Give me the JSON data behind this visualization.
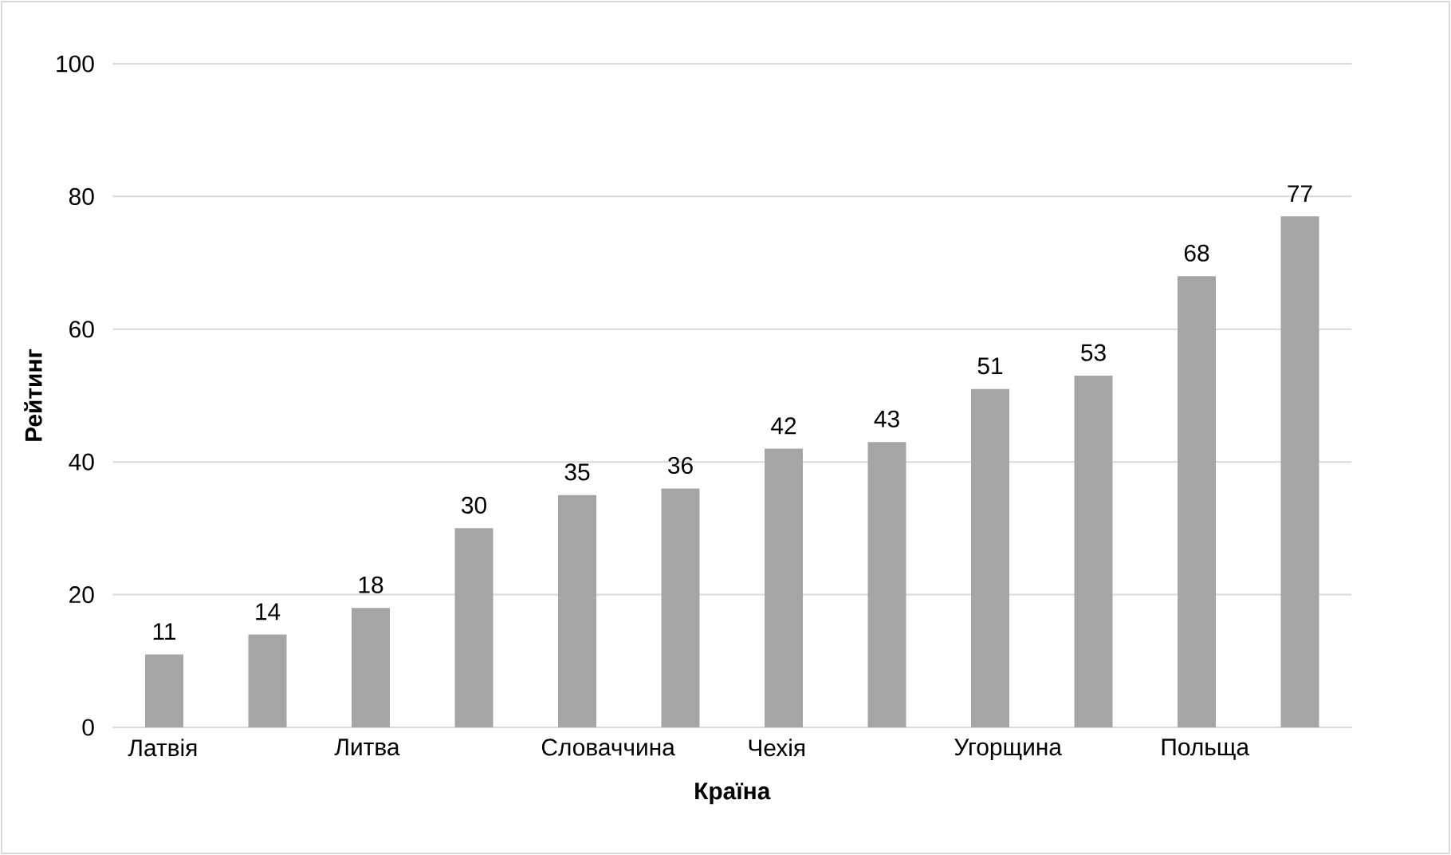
{
  "chart_data": {
    "type": "bar",
    "xlabel": "Країна",
    "ylabel": "Рейтинг",
    "categories": [
      "Латвія",
      null,
      "Литва",
      null,
      "Словаччина",
      null,
      "Чехія",
      null,
      "Угорщина",
      null,
      "Польща",
      null
    ],
    "values": [
      11,
      14,
      18,
      30,
      35,
      36,
      42,
      43,
      51,
      53,
      68,
      77
    ],
    "color": "#a5a5a5",
    "ylim": [
      0,
      100
    ],
    "yticks": [
      0,
      20,
      40,
      60,
      80,
      100
    ],
    "grid": "y",
    "data_labels": true
  }
}
